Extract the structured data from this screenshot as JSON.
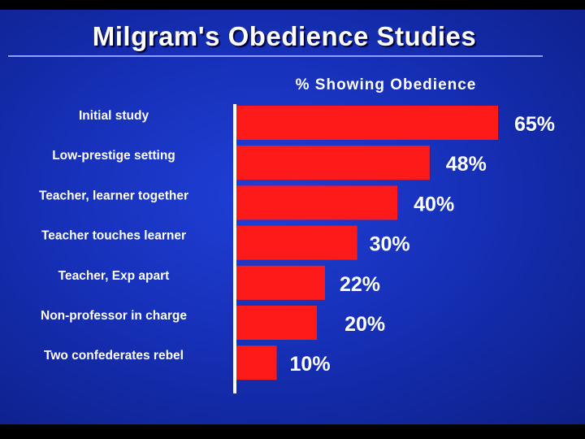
{
  "chart_data": {
    "type": "bar",
    "orientation": "horizontal",
    "title": "Milgram's Obedience Studies",
    "subtitle": "% Showing Obedience",
    "categories": [
      "Initial study",
      "Low-prestige setting",
      "Teacher,  learner together",
      "Teacher touches learner",
      "Teacher, Exp apart",
      "Non-professor in charge",
      "Two confederates rebel"
    ],
    "values": [
      65,
      48,
      40,
      30,
      22,
      20,
      10
    ],
    "value_labels": [
      "65%",
      "48%",
      "40%",
      "30%",
      "22%",
      "20%",
      "10%"
    ],
    "xlim": [
      0,
      65
    ],
    "grid": false,
    "bar_color": "#ff1a1a"
  },
  "colors": {
    "background": "#1630b8",
    "text": "#ffffff",
    "axis": "#ffffff"
  }
}
